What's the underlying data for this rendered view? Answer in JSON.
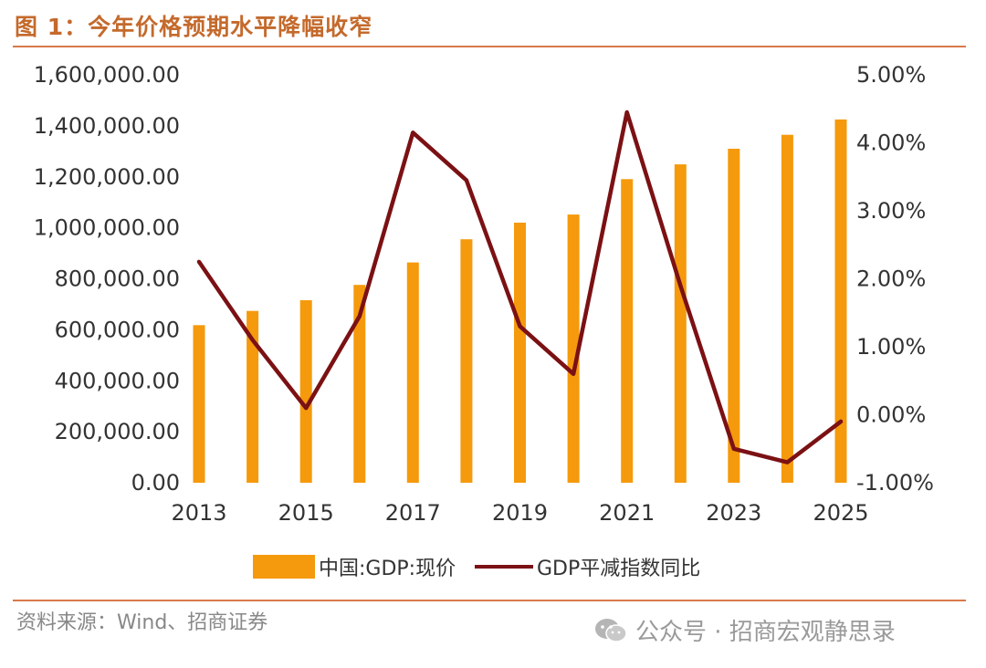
{
  "figure": {
    "title": "图 1：今年价格预期水平降幅收窄",
    "source": "资料来源：Wind、招商证券",
    "watermark": "公众号 · 招商宏观静思录"
  },
  "colors": {
    "bar": "#F59A0C",
    "line": "#7B1114",
    "title": "#C46A2C",
    "rule": "#D9794A"
  },
  "chart_data": {
    "type": "bar",
    "x": [
      2013,
      2014,
      2015,
      2016,
      2017,
      2018,
      2019,
      2020,
      2021,
      2022,
      2023,
      2024,
      2025
    ],
    "x_tick_labels": [
      "2013",
      "2015",
      "2017",
      "2019",
      "2021",
      "2023",
      "2025"
    ],
    "x_tick_values": [
      2013,
      2015,
      2017,
      2019,
      2021,
      2023,
      2025
    ],
    "y_left_ticks": [
      "0.00",
      "200,000.00",
      "400,000.00",
      "600,000.00",
      "800,000.00",
      "1,000,000.00",
      "1,200,000.00",
      "1,400,000.00",
      "1,600,000.00"
    ],
    "y_left_tick_values": [
      0,
      200000,
      400000,
      600000,
      800000,
      1000000,
      1200000,
      1400000,
      1600000
    ],
    "ylim_left": [
      0,
      1600000
    ],
    "y_right_ticks": [
      "-1.00%",
      "0.00%",
      "1.00%",
      "2.00%",
      "3.00%",
      "4.00%",
      "5.00%"
    ],
    "y_right_tick_values": [
      -1,
      0,
      1,
      2,
      3,
      4,
      5
    ],
    "ylim_right": [
      -1,
      5
    ],
    "series": [
      {
        "name": "中国:GDP:现价",
        "type": "bar",
        "axis": "left",
        "values": [
          618000,
          674000,
          716000,
          776000,
          864000,
          955000,
          1020000,
          1052000,
          1191000,
          1249000,
          1310000,
          1365000,
          1425000
        ]
      },
      {
        "name": "GDP平减指数同比",
        "type": "line",
        "axis": "right",
        "values": [
          2.25,
          1.1,
          0.1,
          1.45,
          4.15,
          3.45,
          1.3,
          0.6,
          4.45,
          1.9,
          -0.5,
          -0.7,
          -0.1
        ]
      }
    ],
    "legend": [
      {
        "label": "中国:GDP:现价",
        "kind": "bar"
      },
      {
        "label": "GDP平减指数同比",
        "kind": "line"
      }
    ],
    "legend_position": "bottom",
    "grid": false
  }
}
